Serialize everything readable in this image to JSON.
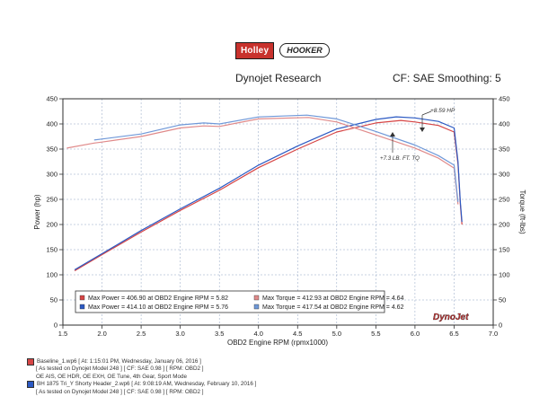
{
  "header": {
    "logo_left": "Holley",
    "logo_right": "HOOKER",
    "title": "Dynojet Research",
    "correction": "CF: SAE Smoothing: 5"
  },
  "chart_data": {
    "type": "line",
    "xlabel": "OBD2 Engine RPM (rpmx1000)",
    "ylabel_left": "Power (hp)",
    "ylabel_right": "Torque (ft-lbs)",
    "xlim": [
      1.5,
      7.0
    ],
    "ylim": [
      0,
      450
    ],
    "x_ticks": [
      "1.5",
      "2.0",
      "2.5",
      "3.0",
      "3.5",
      "4.0",
      "4.5",
      "5.0",
      "5.5",
      "6.0",
      "6.5",
      "7.0"
    ],
    "y_ticks": [
      "0",
      "50",
      "100",
      "150",
      "200",
      "250",
      "300",
      "350",
      "400",
      "450"
    ],
    "grid": true,
    "series": [
      {
        "name": "Max Power = 406.90 at OBD2 Engine RPM = 5.82",
        "kind": "power",
        "color": "#d64545",
        "x": [
          1.65,
          2.0,
          2.5,
          3.0,
          3.5,
          4.0,
          4.5,
          5.0,
          5.5,
          5.82,
          6.0,
          6.3,
          6.5,
          6.55,
          6.58,
          6.6
        ],
        "y": [
          108,
          140,
          185,
          228,
          268,
          313,
          350,
          384,
          402,
          406.9,
          404,
          397,
          384,
          320,
          240,
          200
        ]
      },
      {
        "name": "Max Power = 414.10 at OBD2 Engine RPM = 5.76",
        "kind": "power",
        "color": "#2b59c3",
        "x": [
          1.65,
          2.0,
          2.5,
          3.0,
          3.5,
          4.0,
          4.5,
          5.0,
          5.5,
          5.76,
          6.0,
          6.3,
          6.5,
          6.55,
          6.58,
          6.6
        ],
        "y": [
          110,
          142,
          188,
          231,
          272,
          318,
          356,
          390,
          409,
          414.1,
          412,
          405,
          392,
          325,
          245,
          205
        ]
      },
      {
        "name": "Max Torque = 412.93 at OBD2 Engine RPM = 4.64",
        "kind": "torque",
        "color": "#e08a8a",
        "x": [
          1.55,
          1.9,
          2.0,
          2.5,
          3.0,
          3.3,
          3.5,
          4.0,
          4.64,
          5.0,
          5.5,
          6.0,
          6.3,
          6.5,
          6.55
        ],
        "y": [
          352,
          362,
          364,
          375,
          392,
          396,
          395,
          410,
          412.93,
          404,
          378,
          352,
          332,
          312,
          240
        ]
      },
      {
        "name": "Max Torque = 417.54 at OBD2 Engine RPM = 4.62",
        "kind": "torque",
        "color": "#6f98d8",
        "x": [
          1.9,
          2.0,
          2.5,
          3.0,
          3.3,
          3.5,
          4.0,
          4.62,
          5.0,
          5.5,
          6.0,
          6.3,
          6.5,
          6.55
        ],
        "y": [
          368,
          370,
          380,
          398,
          402,
          400,
          414,
          417.54,
          410,
          385,
          358,
          337,
          318,
          245
        ]
      }
    ],
    "annotations": [
      "+8.59 HP",
      "+7.3 LB. FT. TQ"
    ],
    "watermark": "DynoJet"
  },
  "footer": {
    "run1_file": "Baseline_1.wp6 [ At: 1:15:01 PM, Wednesday, January 06, 2016 ]",
    "run1_color": "#d64545",
    "run1_detail": "[ As tested on Dynojet Model 248 ] [ CF: SAE 0.98 ] [ RPM: OBD2 ]",
    "run1_notes": "OE AIS, OE HDR, OE EXH, OE Tune, 4th Gear, Sport Mode",
    "run2_file": "BH 1875 Tri_Y Shorty Header_2.wp6 [ At: 9:08:19 AM, Wednesday, February 10, 2016 ]",
    "run2_color": "#2b59c3",
    "run2_detail": "[ As tested on Dynojet Model 248 ] [ CF: SAE 0.98 ] [ RPM: OBD2 ]"
  }
}
